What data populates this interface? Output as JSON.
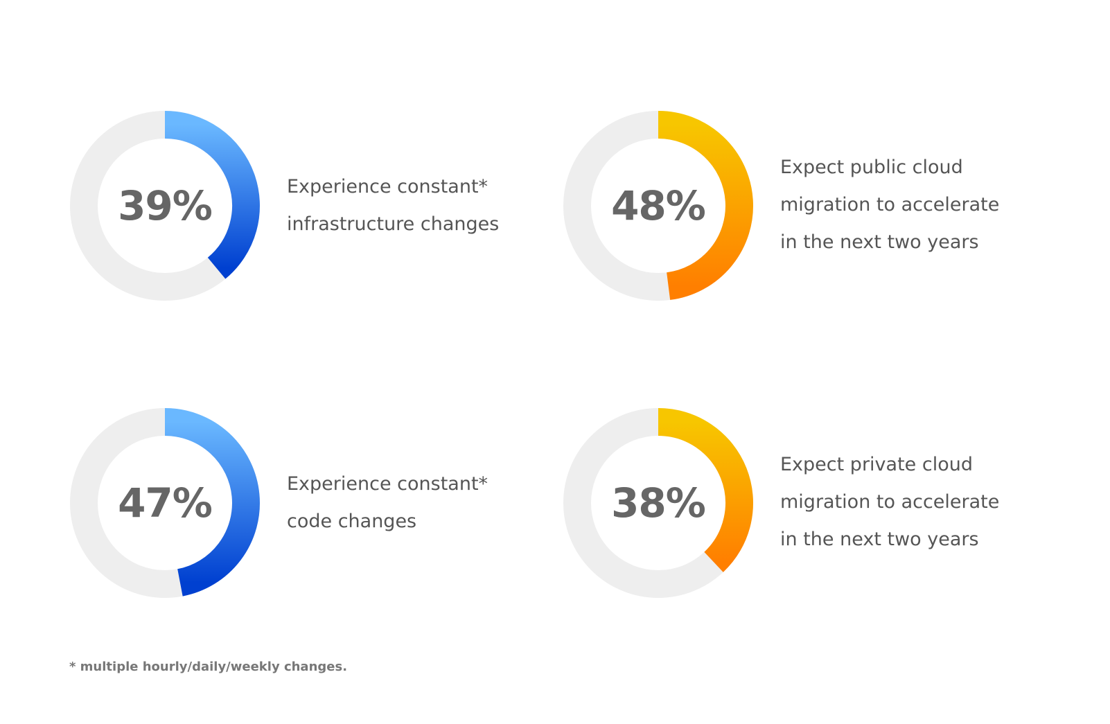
{
  "chart_data": [
    {
      "type": "pie",
      "value_label": "39%",
      "values": [
        39,
        61
      ],
      "lines": [
        "Experience constant*",
        "infrastructure changes"
      ],
      "colors": {
        "start": "#6ab8ff",
        "end": "#0040d0",
        "track": "#eeeeee"
      }
    },
    {
      "type": "pie",
      "value_label": "48%",
      "values": [
        48,
        52
      ],
      "lines": [
        "Expect public cloud",
        "migration to accelerate",
        "in the next two years"
      ],
      "colors": {
        "start": "#f7c600",
        "end": "#ff7f00",
        "track": "#eeeeee"
      }
    },
    {
      "type": "pie",
      "value_label": "47%",
      "values": [
        47,
        53
      ],
      "lines": [
        "Experience constant*",
        "code changes"
      ],
      "colors": {
        "start": "#6ab8ff",
        "end": "#0040d0",
        "track": "#eeeeee"
      }
    },
    {
      "type": "pie",
      "value_label": "38%",
      "values": [
        38,
        62
      ],
      "lines": [
        "Expect private cloud",
        "migration to accelerate",
        "in the next two years"
      ],
      "colors": {
        "start": "#f7c600",
        "end": "#ff7f00",
        "track": "#eeeeee"
      }
    }
  ],
  "footnote": "* multiple hourly/daily/weekly changes."
}
